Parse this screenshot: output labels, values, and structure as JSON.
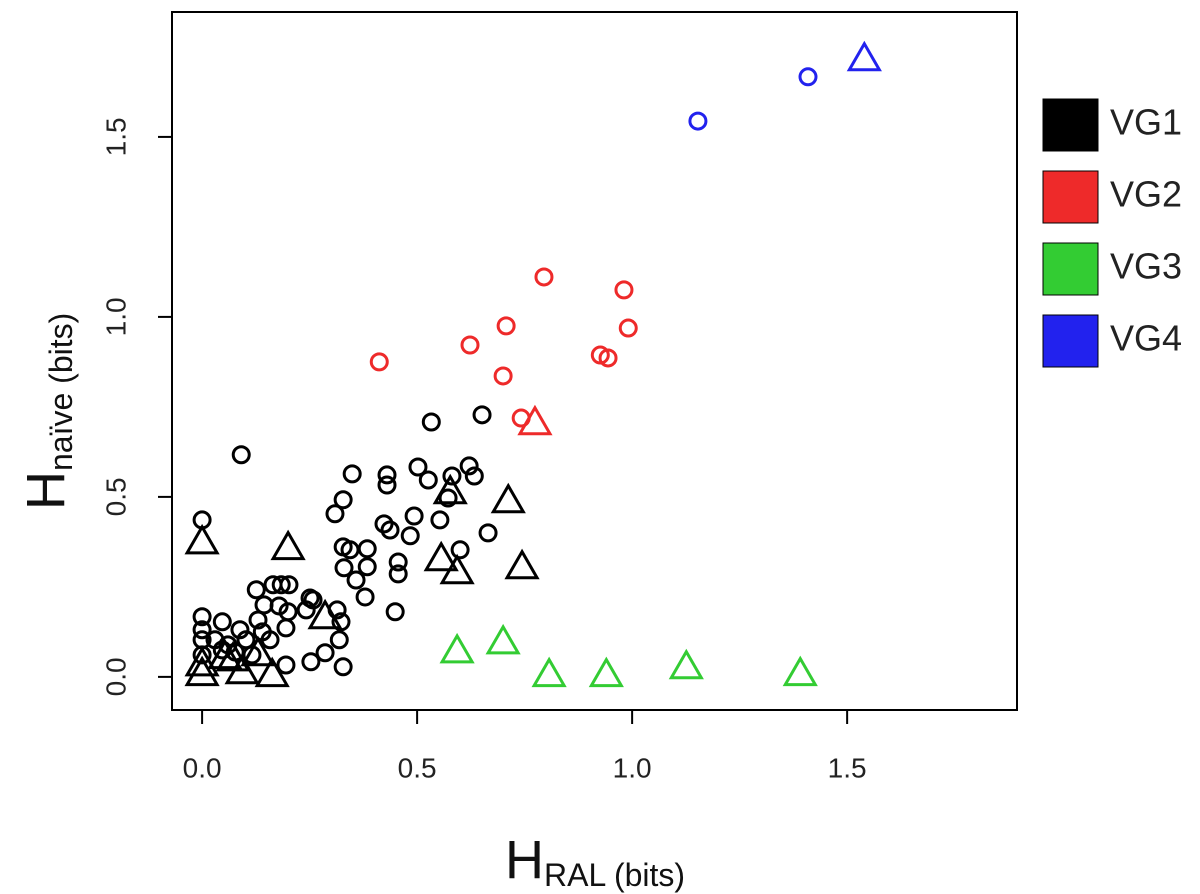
{
  "chart_data": {
    "type": "scatter",
    "x_label": {
      "main": "H",
      "sub": "RAL (bits)"
    },
    "y_label": {
      "main": "H",
      "sub": "naïve (bits)"
    },
    "xlim": [
      -0.07,
      1.895
    ],
    "ylim": [
      -0.092,
      1.847
    ],
    "xticks": [
      {
        "value": 0,
        "label": "0.0"
      },
      0.5,
      {
        "value": 1,
        "label": "1.0"
      },
      1.5
    ],
    "yticks": [
      {
        "value": 0,
        "label": "0.0"
      },
      0.5,
      {
        "value": 1,
        "label": "1.0"
      },
      1.5
    ],
    "legend": "right",
    "series": [
      {
        "name": "VG1",
        "color": "#000000",
        "x": [
          0.091,
          0,
          0.533,
          0.651,
          0.349,
          0.43,
          0.43,
          0.502,
          0.526,
          0.621,
          0.633,
          0.581,
          0.328,
          0.309,
          0.328,
          0.344,
          0.33,
          0.358,
          0.384,
          0.384,
          0.379,
          0.423,
          0.437,
          0.456,
          0.456,
          0.449,
          0.484,
          0.493,
          0.553,
          0.572,
          0.6,
          0.665,
          0.323,
          0.319,
          0.328,
          0.286,
          0.253,
          0.314,
          0.258,
          0.242,
          0.251,
          0.2,
          0.179,
          0.165,
          0.184,
          0.202,
          0.126,
          0.144,
          0.195,
          0.13,
          0.088,
          0.047,
          0,
          0,
          0,
          0,
          0.03,
          0.06,
          0.077,
          0.102,
          0.047,
          0.14,
          0.195,
          0.116,
          0.158,
          0,
          0.2,
          0.577,
          0.712,
          0.556,
          0.593,
          0.744,
          0.286,
          0,
          0,
          0.053,
          0.093,
          0.13,
          0.163,
          0.072
        ],
        "y": [
          0.617,
          0.436,
          0.708,
          0.728,
          0.564,
          0.561,
          0.533,
          0.583,
          0.547,
          0.586,
          0.558,
          0.558,
          0.492,
          0.453,
          0.361,
          0.353,
          0.303,
          0.269,
          0.356,
          0.306,
          0.222,
          0.425,
          0.408,
          0.319,
          0.286,
          0.181,
          0.392,
          0.447,
          0.436,
          0.497,
          0.353,
          0.4,
          0.153,
          0.103,
          0.028,
          0.067,
          0.042,
          0.186,
          0.214,
          0.186,
          0.219,
          0.181,
          0.197,
          0.256,
          0.256,
          0.256,
          0.242,
          0.2,
          0.136,
          0.158,
          0.131,
          0.153,
          0.167,
          0.131,
          0.103,
          0.061,
          0.103,
          0.089,
          0.069,
          0.103,
          0.075,
          0.125,
          0.033,
          0.061,
          0.103,
          0.372,
          0.356,
          0.511,
          0.486,
          0.325,
          0.289,
          0.303,
          0.164,
          0.033,
          0.006,
          0.053,
          0.011,
          0.061,
          0.003,
          0.047
        ],
        "markers": [
          "circle",
          "circle",
          "circle",
          "circle",
          "circle",
          "circle",
          "circle",
          "circle",
          "circle",
          "circle",
          "circle",
          "circle",
          "circle",
          "circle",
          "circle",
          "circle",
          "circle",
          "circle",
          "circle",
          "circle",
          "circle",
          "circle",
          "circle",
          "circle",
          "circle",
          "circle",
          "circle",
          "circle",
          "circle",
          "circle",
          "circle",
          "circle",
          "circle",
          "circle",
          "circle",
          "circle",
          "circle",
          "circle",
          "circle",
          "circle",
          "circle",
          "circle",
          "circle",
          "circle",
          "circle",
          "circle",
          "circle",
          "circle",
          "circle",
          "circle",
          "circle",
          "circle",
          "circle",
          "circle",
          "circle",
          "circle",
          "circle",
          "circle",
          "circle",
          "circle",
          "circle",
          "circle",
          "circle",
          "circle",
          "circle",
          "triangle",
          "triangle",
          "triangle",
          "triangle",
          "triangle",
          "triangle",
          "triangle",
          "triangle",
          "triangle",
          "triangle",
          "triangle",
          "triangle",
          "triangle",
          "triangle",
          "triangle"
        ]
      },
      {
        "name": "VG2",
        "color": "#ee2a2a",
        "x": [
          0.412,
          0.623,
          0.707,
          0.795,
          0.7,
          0.981,
          0.991,
          0.926,
          0.944,
          0.742,
          0.774
        ],
        "y": [
          0.875,
          0.922,
          0.975,
          1.111,
          0.836,
          1.075,
          0.969,
          0.894,
          0.886,
          0.719,
          0.703
        ],
        "markers": [
          "circle",
          "circle",
          "circle",
          "circle",
          "circle",
          "circle",
          "circle",
          "circle",
          "circle",
          "circle",
          "triangle"
        ]
      },
      {
        "name": "VG3",
        "color": "#33cc33",
        "x": [
          0.593,
          0.7,
          0.807,
          0.94,
          1.126,
          1.391
        ],
        "y": [
          0.069,
          0.094,
          0.003,
          0.003,
          0.025,
          0.006
        ],
        "markers": [
          "triangle",
          "triangle",
          "triangle",
          "triangle",
          "triangle",
          "triangle"
        ]
      },
      {
        "name": "VG4",
        "color": "#2222ee",
        "x": [
          1.153,
          1.409,
          1.54
        ],
        "y": [
          1.544,
          1.667,
          1.714
        ],
        "markers": [
          "circle",
          "circle",
          "triangle"
        ]
      }
    ]
  }
}
